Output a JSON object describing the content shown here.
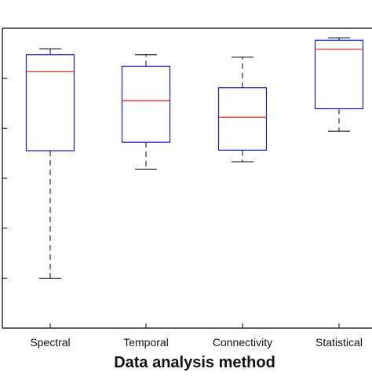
{
  "chart_data": {
    "type": "box",
    "title": "",
    "xlabel": "Data analysis method",
    "ylabel": "",
    "categories": [
      "Spectral",
      "Temporal",
      "Connectivity",
      "Statistical"
    ],
    "ylim": [
      0,
      6
    ],
    "boxes": [
      {
        "category": "Spectral",
        "whisker_low": 1.0,
        "q1": 3.55,
        "median": 5.13,
        "q3": 5.47,
        "whisker_high": 5.59
      },
      {
        "category": "Temporal",
        "whisker_low": 3.18,
        "q1": 3.72,
        "median": 4.55,
        "q3": 5.24,
        "whisker_high": 5.47
      },
      {
        "category": "Connectivity",
        "whisker_low": 3.33,
        "q1": 3.56,
        "median": 4.22,
        "q3": 4.81,
        "whisker_high": 5.42
      },
      {
        "category": "Statistical",
        "whisker_low": 3.94,
        "q1": 4.39,
        "median": 5.58,
        "q3": 5.76,
        "whisker_high": 5.81
      }
    ],
    "colors": {
      "box": "#1a1acc",
      "median": "#e03030",
      "whisker": "#000000",
      "axis": "#000000"
    },
    "grid": false,
    "legend": "none"
  }
}
